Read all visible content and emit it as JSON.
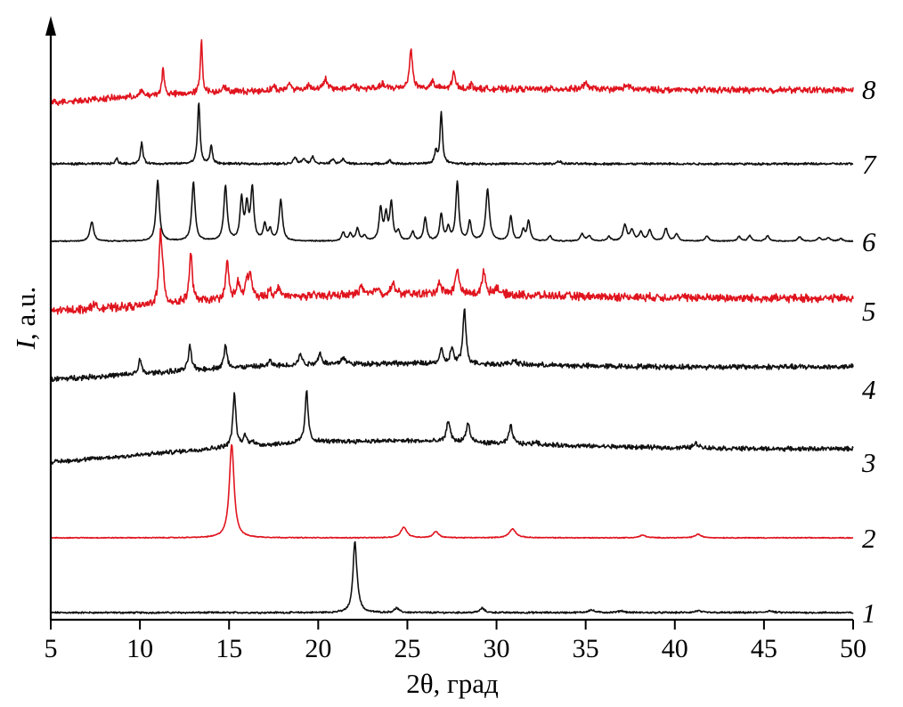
{
  "chart_data": {
    "type": "line",
    "title": "",
    "xlabel": "2θ, град",
    "ylabel_var": "I",
    "ylabel_rest": ", a.u.",
    "xlim": [
      5,
      50
    ],
    "xticks": [
      5,
      10,
      15,
      20,
      25,
      30,
      35,
      40,
      45,
      50
    ],
    "grid": false,
    "legend": "none",
    "colors": {
      "black": "#111111",
      "red": "#e0141e"
    },
    "series": [
      {
        "label": "1",
        "color": "#111111",
        "noise": 0.8,
        "background": [
          [
            5,
            0
          ],
          [
            50,
            0
          ]
        ],
        "peaks": [
          [
            22.05,
            75,
            0.12
          ],
          [
            22.2,
            10,
            0.15
          ],
          [
            24.4,
            5,
            0.15
          ],
          [
            29.2,
            5,
            0.15
          ],
          [
            35.3,
            3,
            0.2
          ],
          [
            37.0,
            2,
            0.2
          ],
          [
            41.3,
            2,
            0.2
          ],
          [
            45.3,
            2,
            0.2
          ]
        ]
      },
      {
        "label": "2",
        "color": "#e0141e",
        "noise": 0.4,
        "background": [
          [
            5,
            0
          ],
          [
            50,
            0
          ]
        ],
        "peaks": [
          [
            15.15,
            105,
            0.16
          ],
          [
            24.8,
            12,
            0.2
          ],
          [
            26.6,
            7,
            0.18
          ],
          [
            30.9,
            10,
            0.22
          ],
          [
            38.2,
            3,
            0.2
          ],
          [
            41.3,
            4,
            0.2
          ]
        ]
      },
      {
        "label": "3",
        "color": "#111111",
        "noise": 2.0,
        "background": [
          [
            5,
            0
          ],
          [
            10,
            8
          ],
          [
            15,
            17
          ],
          [
            20,
            23
          ],
          [
            25,
            24
          ],
          [
            30,
            21
          ],
          [
            35,
            18
          ],
          [
            40,
            16
          ],
          [
            45,
            15
          ],
          [
            50,
            15
          ]
        ],
        "peaks": [
          [
            15.3,
            60,
            0.1
          ],
          [
            15.9,
            12,
            0.1
          ],
          [
            16.3,
            6,
            0.1
          ],
          [
            19.35,
            58,
            0.1
          ],
          [
            27.3,
            24,
            0.12
          ],
          [
            28.4,
            22,
            0.12
          ],
          [
            30.8,
            20,
            0.12
          ],
          [
            32.2,
            3,
            0.15
          ],
          [
            41.2,
            5,
            0.2
          ]
        ]
      },
      {
        "label": "4",
        "color": "#111111",
        "noise": 2.3,
        "background": [
          [
            5,
            0
          ],
          [
            10,
            6
          ],
          [
            15,
            13
          ],
          [
            20,
            17
          ],
          [
            25,
            18
          ],
          [
            30,
            17
          ],
          [
            35,
            15
          ],
          [
            40,
            14
          ],
          [
            45,
            14
          ],
          [
            50,
            14
          ]
        ],
        "peaks": [
          [
            10.0,
            16,
            0.1
          ],
          [
            12.8,
            28,
            0.1
          ],
          [
            14.8,
            25,
            0.1
          ],
          [
            17.3,
            6,
            0.1
          ],
          [
            19.0,
            13,
            0.1
          ],
          [
            20.1,
            12,
            0.12
          ],
          [
            21.4,
            8,
            0.12
          ],
          [
            26.9,
            16,
            0.1
          ],
          [
            27.5,
            18,
            0.1
          ],
          [
            28.2,
            62,
            0.1
          ],
          [
            31.0,
            5,
            0.15
          ]
        ]
      },
      {
        "label": "5",
        "color": "#e0141e",
        "noise": 3.6,
        "background": [
          [
            5,
            0
          ],
          [
            10,
            5
          ],
          [
            15,
            13
          ],
          [
            20,
            17
          ],
          [
            25,
            19
          ],
          [
            30,
            18
          ],
          [
            35,
            16
          ],
          [
            40,
            15
          ],
          [
            45,
            14
          ],
          [
            50,
            14
          ]
        ],
        "peaks": [
          [
            7.4,
            6,
            0.1
          ],
          [
            11.15,
            75,
            0.1
          ],
          [
            11.3,
            25,
            0.08
          ],
          [
            12.85,
            55,
            0.1
          ],
          [
            14.9,
            42,
            0.1
          ],
          [
            15.5,
            18,
            0.1
          ],
          [
            16.0,
            20,
            0.1
          ],
          [
            16.2,
            24,
            0.1
          ],
          [
            17.3,
            10,
            0.1
          ],
          [
            17.8,
            12,
            0.1
          ],
          [
            22.4,
            10,
            0.12
          ],
          [
            23.3,
            8,
            0.12
          ],
          [
            24.2,
            12,
            0.12
          ],
          [
            26.8,
            14,
            0.12
          ],
          [
            27.8,
            28,
            0.12
          ],
          [
            29.3,
            25,
            0.12
          ],
          [
            30.0,
            8,
            0.15
          ]
        ]
      },
      {
        "label": "6",
        "color": "#111111",
        "noise": 0.5,
        "background": [
          [
            5,
            0
          ],
          [
            50,
            0
          ]
        ],
        "peaks": [
          [
            7.3,
            22,
            0.12
          ],
          [
            11.0,
            68,
            0.11
          ],
          [
            13.0,
            66,
            0.11
          ],
          [
            14.8,
            62,
            0.11
          ],
          [
            15.7,
            46,
            0.1
          ],
          [
            16.0,
            38,
            0.1
          ],
          [
            16.3,
            58,
            0.1
          ],
          [
            17.0,
            18,
            0.1
          ],
          [
            17.3,
            12,
            0.1
          ],
          [
            17.9,
            46,
            0.11
          ],
          [
            21.4,
            10,
            0.1
          ],
          [
            21.8,
            8,
            0.1
          ],
          [
            22.2,
            14,
            0.1
          ],
          [
            22.6,
            6,
            0.1
          ],
          [
            23.5,
            36,
            0.1
          ],
          [
            23.8,
            28,
            0.1
          ],
          [
            24.1,
            42,
            0.1
          ],
          [
            24.5,
            10,
            0.1
          ],
          [
            25.3,
            10,
            0.1
          ],
          [
            26.0,
            26,
            0.1
          ],
          [
            26.9,
            30,
            0.1
          ],
          [
            27.3,
            14,
            0.1
          ],
          [
            27.8,
            66,
            0.1
          ],
          [
            28.5,
            22,
            0.1
          ],
          [
            29.5,
            58,
            0.12
          ],
          [
            30.8,
            28,
            0.1
          ],
          [
            31.5,
            12,
            0.1
          ],
          [
            31.8,
            22,
            0.1
          ],
          [
            33.0,
            6,
            0.1
          ],
          [
            34.8,
            8,
            0.12
          ],
          [
            35.2,
            6,
            0.12
          ],
          [
            36.3,
            5,
            0.12
          ],
          [
            37.2,
            18,
            0.12
          ],
          [
            37.6,
            12,
            0.12
          ],
          [
            38.1,
            10,
            0.12
          ],
          [
            38.6,
            12,
            0.12
          ],
          [
            39.5,
            14,
            0.12
          ],
          [
            40.1,
            8,
            0.12
          ],
          [
            41.8,
            6,
            0.12
          ],
          [
            43.6,
            5,
            0.12
          ],
          [
            44.2,
            6,
            0.12
          ],
          [
            45.2,
            6,
            0.12
          ],
          [
            47.0,
            5,
            0.12
          ],
          [
            48.1,
            4,
            0.12
          ],
          [
            48.6,
            4,
            0.12
          ],
          [
            49.3,
            3,
            0.12
          ]
        ]
      },
      {
        "label": "7",
        "color": "#111111",
        "noise": 1.0,
        "background": [
          [
            5,
            0
          ],
          [
            50,
            0
          ]
        ],
        "peaks": [
          [
            8.7,
            6,
            0.08
          ],
          [
            10.1,
            24,
            0.08
          ],
          [
            13.3,
            70,
            0.08
          ],
          [
            14.0,
            20,
            0.08
          ],
          [
            18.7,
            8,
            0.1
          ],
          [
            19.2,
            6,
            0.1
          ],
          [
            19.7,
            8,
            0.1
          ],
          [
            20.8,
            5,
            0.1
          ],
          [
            21.4,
            6,
            0.1
          ],
          [
            24.0,
            4,
            0.1
          ],
          [
            26.6,
            14,
            0.08
          ],
          [
            26.9,
            58,
            0.08
          ],
          [
            33.5,
            3,
            0.12
          ]
        ]
      },
      {
        "label": "8",
        "color": "#e0141e",
        "noise": 2.8,
        "background": [
          [
            5,
            0
          ],
          [
            10,
            7
          ],
          [
            15,
            12
          ],
          [
            20,
            15
          ],
          [
            25,
            16
          ],
          [
            30,
            15
          ],
          [
            35,
            15
          ],
          [
            40,
            14
          ],
          [
            45,
            14
          ],
          [
            50,
            14
          ]
        ],
        "peaks": [
          [
            10.1,
            6,
            0.1
          ],
          [
            11.3,
            30,
            0.08
          ],
          [
            13.45,
            60,
            0.07
          ],
          [
            14.7,
            8,
            0.1
          ],
          [
            17.5,
            5,
            0.1
          ],
          [
            18.4,
            8,
            0.1
          ],
          [
            19.5,
            6,
            0.1
          ],
          [
            20.4,
            12,
            0.1
          ],
          [
            22.0,
            5,
            0.1
          ],
          [
            23.6,
            6,
            0.1
          ],
          [
            25.2,
            44,
            0.1
          ],
          [
            26.4,
            8,
            0.1
          ],
          [
            27.6,
            18,
            0.1
          ],
          [
            28.6,
            5,
            0.1
          ],
          [
            35.0,
            6,
            0.15
          ],
          [
            37.3,
            5,
            0.15
          ]
        ]
      }
    ]
  }
}
